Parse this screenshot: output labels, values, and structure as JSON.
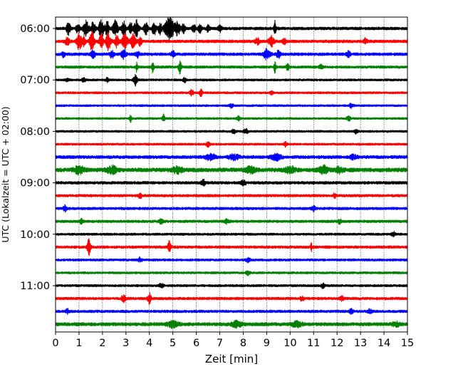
{
  "chart_data": {
    "type": "line",
    "title": "",
    "xlabel": "Zeit  [min]",
    "ylabel": "UTC (Lokalzeit = UTC + 02:00)",
    "xlim": [
      0,
      15
    ],
    "x_ticks": [
      0,
      1,
      2,
      3,
      4,
      5,
      6,
      7,
      8,
      9,
      10,
      11,
      12,
      13,
      14,
      15
    ],
    "x_tick_labels": [
      "0",
      "1",
      "2",
      "3",
      "4",
      "5",
      "6",
      "7",
      "8",
      "9",
      "10",
      "11",
      "12",
      "13",
      "14",
      "15"
    ],
    "y_tick_labels": [
      "06:00",
      "07:00",
      "08:00",
      "09:00",
      "10:00",
      "11:00"
    ],
    "y_tick_trace_index": [
      0,
      4,
      8,
      12,
      16,
      20
    ],
    "grid": "vertical dotted lines at each minute",
    "trace_colors": [
      "#000000",
      "#ff0000",
      "#0000ff",
      "#008000"
    ],
    "traces": [
      {
        "start": "06:00",
        "color": "#000000",
        "noise": 2.0,
        "bursts": [
          [
            0.55,
            0.06,
            9
          ],
          [
            0.95,
            0.05,
            8
          ],
          [
            1.3,
            0.08,
            10
          ],
          [
            1.6,
            0.06,
            9
          ],
          [
            1.95,
            0.08,
            12
          ],
          [
            2.2,
            0.06,
            10
          ],
          [
            2.55,
            0.08,
            12
          ],
          [
            2.9,
            0.06,
            10
          ],
          [
            3.2,
            0.06,
            8
          ],
          [
            3.45,
            0.07,
            11
          ],
          [
            3.85,
            0.06,
            8
          ],
          [
            4.2,
            0.06,
            9
          ],
          [
            4.45,
            0.05,
            8
          ],
          [
            4.85,
            0.15,
            15
          ],
          [
            5.2,
            0.07,
            10
          ],
          [
            5.45,
            0.05,
            6
          ],
          [
            5.9,
            0.05,
            5
          ],
          [
            6.15,
            0.05,
            6
          ],
          [
            6.5,
            0.05,
            5
          ],
          [
            7.0,
            0.05,
            5
          ],
          [
            9.35,
            0.03,
            11
          ]
        ]
      },
      {
        "start": "06:15",
        "color": "#ff0000",
        "noise": 2.0,
        "bursts": [
          [
            0.5,
            0.06,
            6
          ],
          [
            1.0,
            0.08,
            11
          ],
          [
            1.2,
            0.05,
            8
          ],
          [
            1.55,
            0.07,
            13
          ],
          [
            1.95,
            0.06,
            11
          ],
          [
            2.25,
            0.07,
            12
          ],
          [
            2.6,
            0.06,
            8
          ],
          [
            2.95,
            0.08,
            12
          ],
          [
            3.3,
            0.07,
            10
          ],
          [
            3.6,
            0.05,
            6
          ],
          [
            8.6,
            0.06,
            5
          ],
          [
            9.2,
            0.08,
            7
          ],
          [
            9.75,
            0.05,
            4
          ],
          [
            13.2,
            0.05,
            4
          ]
        ]
      },
      {
        "start": "06:30",
        "color": "#0000ff",
        "noise": 2.0,
        "bursts": [
          [
            0.35,
            0.05,
            4
          ],
          [
            1.6,
            0.06,
            5
          ],
          [
            2.4,
            0.06,
            5
          ],
          [
            2.9,
            0.07,
            6
          ],
          [
            3.5,
            0.06,
            4
          ],
          [
            5.0,
            0.06,
            4
          ],
          [
            9.0,
            0.1,
            7
          ],
          [
            9.5,
            0.06,
            5
          ],
          [
            12.5,
            0.06,
            4
          ]
        ]
      },
      {
        "start": "06:45",
        "color": "#008000",
        "noise": 1.8,
        "bursts": [
          [
            3.45,
            0.03,
            6
          ],
          [
            4.15,
            0.03,
            8
          ],
          [
            5.3,
            0.04,
            9
          ],
          [
            9.35,
            0.03,
            8
          ],
          [
            9.9,
            0.05,
            4
          ],
          [
            11.3,
            0.05,
            3
          ]
        ]
      },
      {
        "start": "07:00",
        "color": "#000000",
        "noise": 1.5,
        "bursts": [
          [
            0.5,
            0.05,
            3
          ],
          [
            1.2,
            0.05,
            3
          ],
          [
            2.2,
            0.05,
            3
          ],
          [
            3.4,
            0.06,
            8
          ],
          [
            5.5,
            0.05,
            3
          ]
        ]
      },
      {
        "start": "07:15",
        "color": "#ff0000",
        "noise": 1.5,
        "bursts": [
          [
            5.8,
            0.05,
            4
          ],
          [
            6.2,
            0.04,
            5
          ],
          [
            9.2,
            0.05,
            3
          ]
        ]
      },
      {
        "start": "07:30",
        "color": "#0000ff",
        "noise": 1.4,
        "bursts": [
          [
            7.5,
            0.06,
            3
          ],
          [
            12.6,
            0.06,
            3
          ]
        ]
      },
      {
        "start": "07:45",
        "color": "#008000",
        "noise": 1.4,
        "bursts": [
          [
            3.2,
            0.03,
            5
          ],
          [
            4.6,
            0.04,
            6
          ],
          [
            7.8,
            0.05,
            3
          ],
          [
            12.5,
            0.06,
            3
          ]
        ]
      },
      {
        "start": "08:00",
        "color": "#000000",
        "noise": 1.5,
        "bursts": [
          [
            7.6,
            0.05,
            3
          ],
          [
            8.1,
            0.06,
            4
          ],
          [
            12.8,
            0.05,
            3
          ]
        ]
      },
      {
        "start": "08:15",
        "color": "#ff0000",
        "noise": 1.5,
        "bursts": [
          [
            6.5,
            0.06,
            3
          ],
          [
            9.8,
            0.05,
            3
          ]
        ]
      },
      {
        "start": "08:30",
        "color": "#0000ff",
        "noise": 2.2,
        "bursts": [
          [
            6.6,
            0.15,
            4
          ],
          [
            7.6,
            0.15,
            4
          ],
          [
            9.4,
            0.15,
            4
          ],
          [
            12.7,
            0.1,
            3
          ]
        ]
      },
      {
        "start": "08:45",
        "color": "#008000",
        "noise": 2.8,
        "bursts": [
          [
            1.0,
            0.15,
            5
          ],
          [
            2.4,
            0.15,
            5
          ],
          [
            5.2,
            0.15,
            4
          ],
          [
            8.3,
            0.15,
            4
          ],
          [
            10.0,
            0.15,
            4
          ],
          [
            11.4,
            0.15,
            5
          ],
          [
            12.1,
            0.12,
            4
          ]
        ]
      },
      {
        "start": "09:00",
        "color": "#000000",
        "noise": 2.0,
        "bursts": [
          [
            6.3,
            0.06,
            4
          ],
          [
            8.0,
            0.08,
            3
          ]
        ]
      },
      {
        "start": "09:15",
        "color": "#ff0000",
        "noise": 1.8,
        "bursts": [
          [
            3.6,
            0.06,
            3
          ],
          [
            11.9,
            0.05,
            3
          ]
        ]
      },
      {
        "start": "09:30",
        "color": "#0000ff",
        "noise": 1.8,
        "bursts": [
          [
            0.4,
            0.05,
            4
          ],
          [
            11.0,
            0.06,
            3
          ]
        ]
      },
      {
        "start": "09:45",
        "color": "#008000",
        "noise": 1.8,
        "bursts": [
          [
            1.1,
            0.05,
            3
          ],
          [
            4.5,
            0.06,
            3
          ],
          [
            7.3,
            0.06,
            3
          ],
          [
            12.1,
            0.06,
            3
          ]
        ]
      },
      {
        "start": "10:00",
        "color": "#000000",
        "noise": 1.6,
        "bursts": [
          [
            14.4,
            0.06,
            3
          ]
        ]
      },
      {
        "start": "10:15",
        "color": "#ff0000",
        "noise": 1.8,
        "bursts": [
          [
            1.42,
            0.05,
            11
          ],
          [
            4.85,
            0.05,
            8
          ],
          [
            10.9,
            0.02,
            6
          ]
        ]
      },
      {
        "start": "10:30",
        "color": "#0000ff",
        "noise": 1.6,
        "bursts": [
          [
            3.6,
            0.06,
            3
          ],
          [
            8.2,
            0.06,
            3
          ]
        ]
      },
      {
        "start": "10:45",
        "color": "#008000",
        "noise": 1.5,
        "bursts": [
          [
            8.2,
            0.06,
            3
          ]
        ]
      },
      {
        "start": "11:00",
        "color": "#000000",
        "noise": 1.6,
        "bursts": [
          [
            4.5,
            0.06,
            3
          ],
          [
            11.4,
            0.06,
            3
          ]
        ]
      },
      {
        "start": "11:15",
        "color": "#ff0000",
        "noise": 1.8,
        "bursts": [
          [
            2.9,
            0.06,
            5
          ],
          [
            4.0,
            0.05,
            8
          ],
          [
            10.5,
            0.06,
            3
          ],
          [
            12.2,
            0.06,
            3
          ]
        ]
      },
      {
        "start": "11:30",
        "color": "#0000ff",
        "noise": 1.8,
        "bursts": [
          [
            0.5,
            0.05,
            3
          ],
          [
            12.6,
            0.06,
            3
          ],
          [
            13.4,
            0.06,
            3
          ]
        ]
      },
      {
        "start": "11:45",
        "color": "#008000",
        "noise": 2.4,
        "bursts": [
          [
            5.0,
            0.15,
            4
          ],
          [
            7.7,
            0.15,
            4
          ],
          [
            10.3,
            0.15,
            4
          ],
          [
            14.5,
            0.1,
            3
          ]
        ]
      }
    ]
  }
}
